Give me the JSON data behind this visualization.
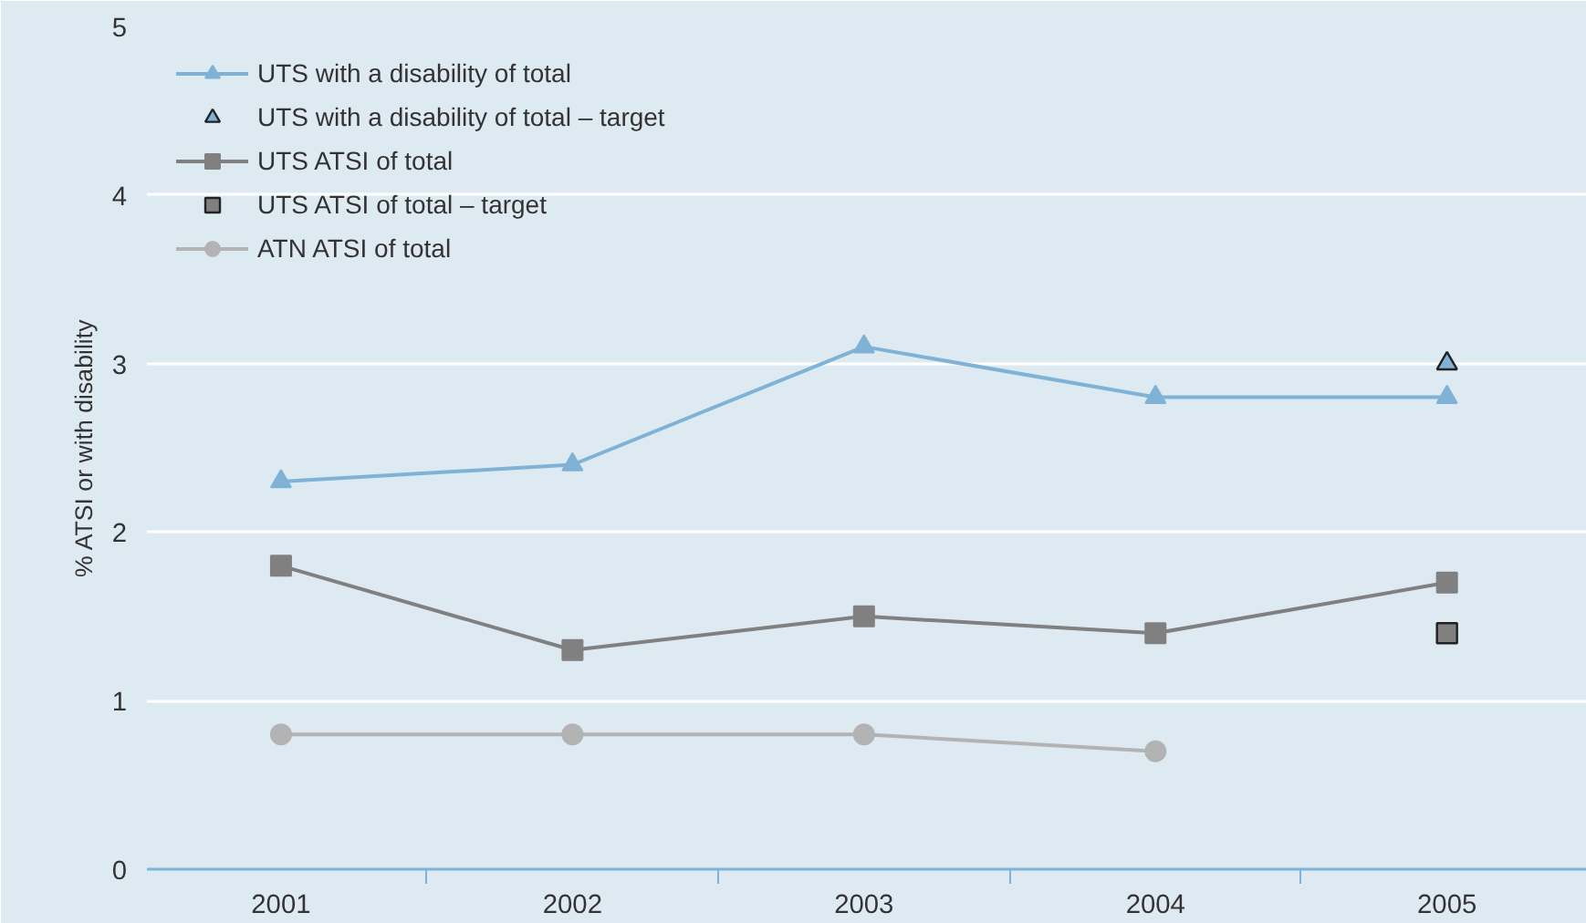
{
  "chart_data": {
    "type": "line",
    "ylabel": "% ATSI or with disability",
    "categories": [
      "2001",
      "2002",
      "2003",
      "2004",
      "2005"
    ],
    "ylim": [
      0,
      5
    ],
    "yticks": [
      0,
      1,
      2,
      3,
      4,
      5
    ],
    "grid": "y",
    "legend": "top left",
    "series": [
      {
        "name": "UTS with a disability of total",
        "type": "line",
        "marker": "triangle",
        "color": "#7fb2d4",
        "values": [
          2.3,
          2.4,
          3.1,
          2.8,
          2.8
        ]
      },
      {
        "name": "UTS with a disability of total – target",
        "type": "scatter",
        "marker": "triangle",
        "color": "#7fb2d4",
        "values": [
          null,
          null,
          null,
          null,
          3.0
        ]
      },
      {
        "name": "UTS ATSI of total",
        "type": "line",
        "marker": "square",
        "color": "#808080",
        "values": [
          1.8,
          1.3,
          1.5,
          1.4,
          1.7
        ]
      },
      {
        "name": "UTS ATSI of total – target",
        "type": "scatter",
        "marker": "square",
        "color": "#808080",
        "values": [
          null,
          null,
          null,
          null,
          1.4
        ]
      },
      {
        "name": "ATN ATSI of total",
        "type": "line",
        "marker": "circle",
        "color": "#b3b3b3",
        "values": [
          0.8,
          0.8,
          0.8,
          0.7,
          null
        ]
      }
    ]
  }
}
